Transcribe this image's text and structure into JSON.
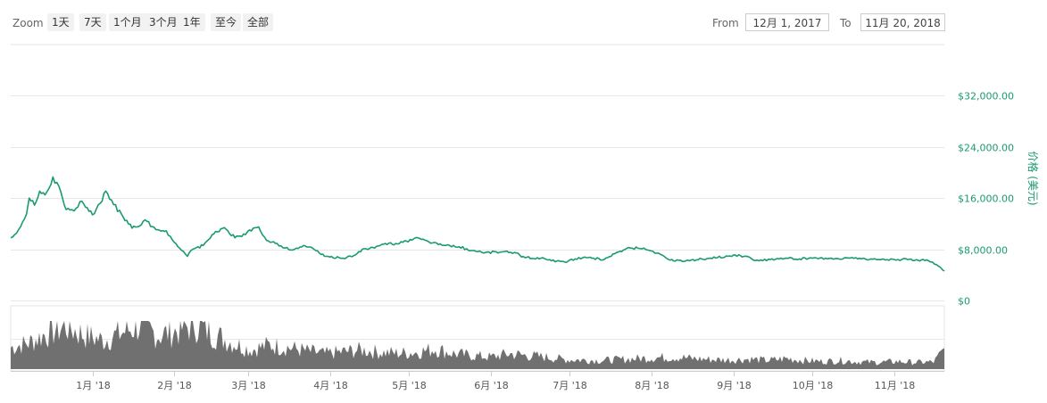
{
  "toolbar": {
    "zoom_label": "Zoom",
    "zoom_buttons": [
      "1天",
      "7天",
      "1个月",
      "3个月",
      "1年",
      "至今",
      "全部"
    ],
    "from_label": "From",
    "from_value": "12月 1, 2017",
    "to_label": "To",
    "to_value": "11月 20, 2018"
  },
  "colors": {
    "price_line": "#1a9b6c",
    "volume_fill": "#707070",
    "grid": "#e6e6e6",
    "axis_text": "#1a9b6c"
  },
  "chart_data": {
    "type": "line",
    "title": "",
    "ylabel": "价格 (美元)",
    "y_ticks": [
      "$0",
      "$8,000.00",
      "$16,000.00",
      "$24,000.00",
      "$32,000.00"
    ],
    "y_tick_values": [
      0,
      8000,
      16000,
      24000,
      32000
    ],
    "ylim": [
      0,
      40000
    ],
    "x_tick_labels": [
      "1月 '18",
      "2月 '18",
      "3月 '18",
      "4月 '18",
      "5月 '18",
      "6月 '18",
      "7月 '18",
      "8月 '18",
      "9月 '18",
      "10月 '18",
      "11月 '18"
    ],
    "x_tick_dates": [
      "2018-01-01",
      "2018-02-01",
      "2018-03-01",
      "2018-04-01",
      "2018-05-01",
      "2018-06-01",
      "2018-07-01",
      "2018-08-01",
      "2018-09-01",
      "2018-10-01",
      "2018-11-01"
    ],
    "xlim": [
      "2017-12-01",
      "2018-11-20"
    ],
    "grid": true,
    "series": [
      {
        "x": [
          "2017-12-01",
          "2017-12-04",
          "2017-12-07",
          "2017-12-08",
          "2017-12-10",
          "2017-12-12",
          "2017-12-14",
          "2017-12-17",
          "2017-12-20",
          "2017-12-22",
          "2017-12-25",
          "2017-12-28",
          "2018-01-01",
          "2018-01-04",
          "2018-01-06",
          "2018-01-09",
          "2018-01-12",
          "2018-01-16",
          "2018-01-18",
          "2018-01-21",
          "2018-01-25",
          "2018-01-29",
          "2018-02-01",
          "2018-02-03",
          "2018-02-06",
          "2018-02-08",
          "2018-02-12",
          "2018-02-16",
          "2018-02-20",
          "2018-02-24",
          "2018-02-28",
          "2018-03-03",
          "2018-03-05",
          "2018-03-08",
          "2018-03-12",
          "2018-03-15",
          "2018-03-18",
          "2018-03-22",
          "2018-03-26",
          "2018-03-30",
          "2018-04-01",
          "2018-04-06",
          "2018-04-10",
          "2018-04-14",
          "2018-04-18",
          "2018-04-22",
          "2018-04-26",
          "2018-04-30",
          "2018-05-05",
          "2018-05-10",
          "2018-05-15",
          "2018-05-20",
          "2018-05-25",
          "2018-05-30",
          "2018-06-05",
          "2018-06-10",
          "2018-06-14",
          "2018-06-20",
          "2018-06-24",
          "2018-06-29",
          "2018-07-03",
          "2018-07-08",
          "2018-07-14",
          "2018-07-18",
          "2018-07-24",
          "2018-07-29",
          "2018-08-03",
          "2018-08-08",
          "2018-08-14",
          "2018-08-20",
          "2018-08-26",
          "2018-09-01",
          "2018-09-05",
          "2018-09-10",
          "2018-09-15",
          "2018-09-21",
          "2018-09-26",
          "2018-10-01",
          "2018-10-06",
          "2018-10-11",
          "2018-10-16",
          "2018-10-21",
          "2018-10-26",
          "2018-11-01",
          "2018-11-06",
          "2018-11-10",
          "2018-11-14",
          "2018-11-17",
          "2018-11-20"
        ],
        "y": [
          9800,
          11100,
          13500,
          16000,
          14900,
          17100,
          16500,
          19300,
          17000,
          14200,
          14000,
          15500,
          13400,
          15200,
          17100,
          15000,
          13500,
          11300,
          11500,
          12600,
          11100,
          10900,
          9100,
          8200,
          6900,
          8000,
          8600,
          10400,
          11400,
          9800,
          10300,
          11300,
          11500,
          9400,
          8900,
          8200,
          7900,
          8600,
          8000,
          6900,
          6800,
          6600,
          7000,
          8100,
          8200,
          8900,
          8900,
          9300,
          9700,
          9000,
          8600,
          8400,
          7800,
          7500,
          7600,
          7500,
          6700,
          6600,
          6200,
          6000,
          6500,
          6700,
          6400,
          7300,
          8200,
          8200,
          7400,
          6300,
          6200,
          6500,
          6700,
          7100,
          6900,
          6300,
          6400,
          6600,
          6500,
          6600,
          6600,
          6500,
          6700,
          6500,
          6400,
          6400,
          6400,
          6300,
          6200,
          5600,
          4600
        ]
      }
    ],
    "volume_series": {
      "name": "volume",
      "x": [
        "2017-12-01",
        "2017-12-08",
        "2017-12-15",
        "2017-12-22",
        "2017-12-29",
        "2018-01-05",
        "2018-01-12",
        "2018-01-19",
        "2018-01-26",
        "2018-02-02",
        "2018-02-09",
        "2018-02-16",
        "2018-02-23",
        "2018-03-02",
        "2018-03-09",
        "2018-03-16",
        "2018-03-23",
        "2018-03-30",
        "2018-04-06",
        "2018-04-13",
        "2018-04-20",
        "2018-04-27",
        "2018-05-04",
        "2018-05-11",
        "2018-05-18",
        "2018-05-25",
        "2018-06-01",
        "2018-06-08",
        "2018-06-15",
        "2018-06-22",
        "2018-06-29",
        "2018-07-06",
        "2018-07-13",
        "2018-07-20",
        "2018-07-27",
        "2018-08-03",
        "2018-08-10",
        "2018-08-17",
        "2018-08-24",
        "2018-08-31",
        "2018-09-07",
        "2018-09-14",
        "2018-09-21",
        "2018-09-28",
        "2018-10-05",
        "2018-10-12",
        "2018-10-19",
        "2018-10-26",
        "2018-11-02",
        "2018-11-09",
        "2018-11-16",
        "2018-11-20"
      ],
      "values": [
        0.45,
        0.55,
        0.75,
        0.9,
        0.7,
        0.6,
        0.75,
        0.92,
        0.7,
        0.8,
        0.95,
        0.72,
        0.55,
        0.4,
        0.5,
        0.45,
        0.38,
        0.32,
        0.36,
        0.4,
        0.35,
        0.33,
        0.35,
        0.42,
        0.32,
        0.28,
        0.25,
        0.32,
        0.28,
        0.25,
        0.2,
        0.19,
        0.18,
        0.2,
        0.22,
        0.24,
        0.25,
        0.22,
        0.2,
        0.19,
        0.21,
        0.18,
        0.22,
        0.18,
        0.16,
        0.18,
        0.15,
        0.14,
        0.16,
        0.14,
        0.15,
        0.4
      ]
    }
  }
}
